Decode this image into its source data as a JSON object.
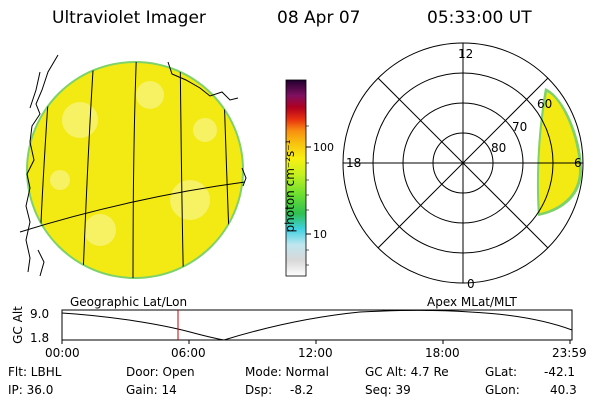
{
  "header": {
    "title": "Ultraviolet Imager",
    "date": "08 Apr 07",
    "time": "05:33:00 UT"
  },
  "colors": {
    "image_fill": "#f2ea12",
    "image_edge": "#7ed26a",
    "background": "#ffffff",
    "cursor": "#cc0000"
  },
  "colorbar": {
    "label": "photon cm⁻²s⁻¹",
    "ticks": [
      "100",
      "10"
    ],
    "scale": "log"
  },
  "left_panel": {
    "label": "Geographic Lat/Lon"
  },
  "right_panel": {
    "label": "Apex MLat/MLT",
    "mlt_labels": [
      "12",
      "18",
      "6",
      "0"
    ],
    "lat_labels": [
      "60",
      "70",
      "80"
    ]
  },
  "altitude_plot": {
    "ylabel": "GC Alt",
    "yticks": [
      "9.0",
      "1.8"
    ],
    "xticks": [
      "00:00",
      "06:00",
      "12:00",
      "18:00",
      "23:59"
    ],
    "cursor_time": "05:33"
  },
  "info": {
    "flt": "Flt: LBHL",
    "ip": "IP: 36.0",
    "door": "Door: Open",
    "gain": "Gain: 14",
    "mode": "Mode: Normal",
    "dsp_label": "Dsp:",
    "dsp_value": "-8.2",
    "gcalt": "GC Alt: 4.7 Re",
    "seq": "Seq: 39",
    "glat_label": "GLat:",
    "glat_value": "-42.1",
    "glon_label": "GLon:",
    "glon_value": "40.3"
  }
}
